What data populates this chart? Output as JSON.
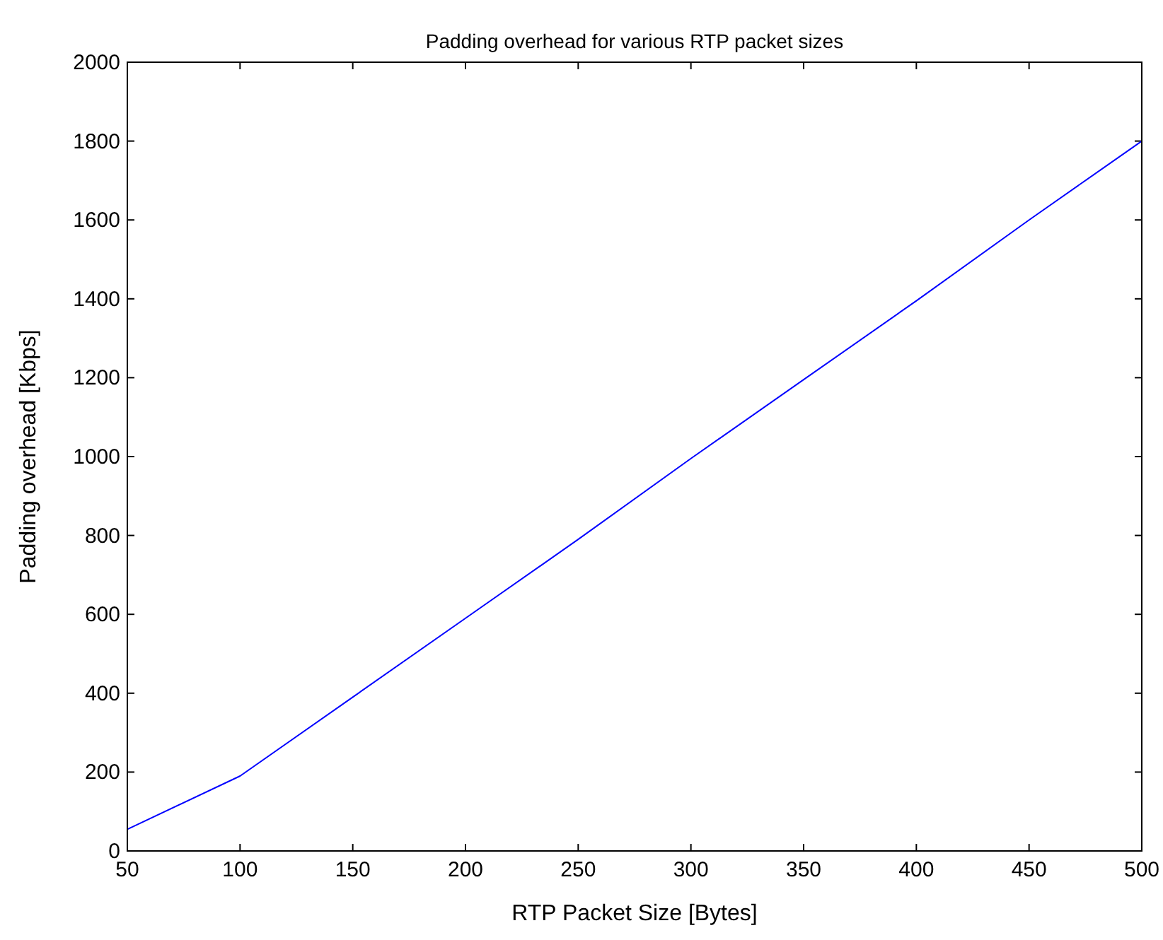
{
  "chart_data": {
    "type": "line",
    "title": "Padding overhead for various RTP packet sizes",
    "xlabel": "RTP Packet Size [Bytes]",
    "ylabel": "Padding overhead [Kbps]",
    "x": [
      50,
      100,
      150,
      200,
      250,
      300,
      350,
      400,
      450,
      500
    ],
    "series": [
      {
        "color": "#0000ff",
        "values": [
          55,
          190,
          390,
          590,
          790,
          995,
          1195,
          1395,
          1600,
          1800
        ]
      }
    ],
    "xlim": [
      50,
      500
    ],
    "xticks": [
      50,
      100,
      150,
      200,
      250,
      300,
      350,
      400,
      450,
      500
    ],
    "ylim": [
      0,
      2000
    ],
    "yticks": [
      0,
      200,
      400,
      600,
      800,
      1000,
      1200,
      1400,
      1600,
      1800,
      2000
    ],
    "marker": "none",
    "line_style": "solid"
  }
}
